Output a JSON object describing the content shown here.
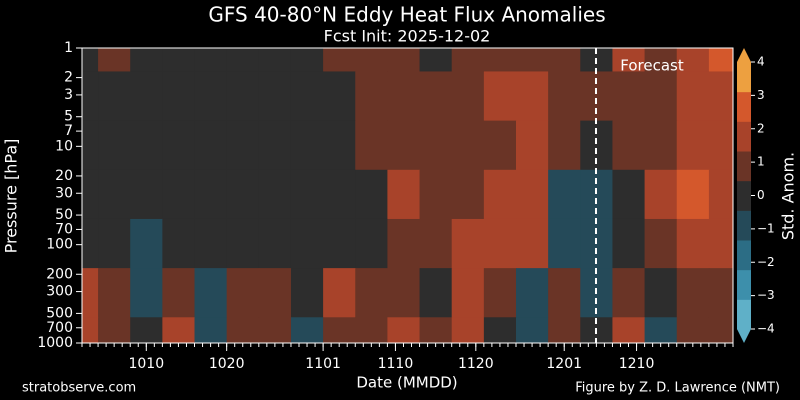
{
  "chart_data": {
    "type": "heatmap",
    "title": "GFS 40-80°N Eddy Heat Flux Anomalies",
    "subtitle": "Fcst Init: 2025-12-02",
    "x_label": "Date (MMDD)",
    "y_label": "Pressure [hPa]",
    "colorbar_label": "Std. Anom.",
    "annotation": "Forecast",
    "footer_left": "stratobserve.com",
    "footer_right": "Figure by Z. D. Lawrence (NMT)",
    "x": [
      "1002",
      "1006",
      "1010",
      "1014",
      "1018",
      "1022",
      "1026",
      "1030",
      "1103",
      "1107",
      "1111",
      "1115",
      "1119",
      "1123",
      "1127",
      "1201",
      "1205",
      "1209",
      "1213",
      "1217",
      "1221"
    ],
    "y": [
      1,
      3,
      10,
      30,
      100,
      300,
      1000
    ],
    "z": [
      [
        0.2,
        0.5,
        0,
        -0.2,
        0,
        0.3,
        0.2,
        0.3,
        0.5,
        0.8,
        0.6,
        0.4,
        1.2,
        1.0,
        0.8,
        1.0,
        0.3,
        1.5,
        1.2,
        1.8,
        2.5
      ],
      [
        0,
        0.3,
        0,
        -0.3,
        -0.2,
        0,
        0.2,
        0.2,
        0.3,
        0.5,
        0.8,
        0.6,
        1.0,
        1.5,
        1.5,
        0.8,
        0.5,
        1.0,
        1.0,
        1.5,
        1.8
      ],
      [
        0,
        0.2,
        -0.2,
        -0.3,
        -0.2,
        -0.1,
        0,
        0.1,
        0.3,
        0.5,
        1.2,
        1.0,
        1.0,
        1.3,
        1.8,
        1.0,
        0.2,
        0.5,
        1.0,
        2.2,
        1.5
      ],
      [
        -0.2,
        0,
        -0.3,
        -0.5,
        -0.3,
        -0.2,
        -0.2,
        0,
        0.2,
        0.3,
        1.5,
        0.8,
        1.2,
        1.5,
        2.0,
        -1.2,
        -1.5,
        -0.5,
        1.5,
        2.5,
        1.8
      ],
      [
        0,
        -0.3,
        -0.8,
        -0.5,
        -0.5,
        -0.2,
        -0.3,
        -0.2,
        0,
        0.3,
        1.0,
        0.5,
        1.5,
        2.0,
        1.5,
        -1.0,
        -1.5,
        -0.5,
        1.0,
        2.0,
        1.5
      ],
      [
        1.5,
        1.0,
        -0.8,
        0.5,
        -1.0,
        0.5,
        0.8,
        0,
        1.5,
        0.5,
        1.2,
        -0.5,
        2.0,
        1.0,
        -0.8,
        0.5,
        -1.5,
        0.5,
        -0.5,
        1.0,
        0.8
      ],
      [
        1.8,
        1.2,
        -0.5,
        1.5,
        -1.5,
        0.8,
        0.5,
        -0.8,
        1.2,
        0.5,
        1.5,
        0.8,
        1.5,
        -0.5,
        -1.5,
        1.0,
        -0.5,
        1.5,
        -0.8,
        1.0,
        1.2
      ]
    ],
    "xlim": [
      "1002",
      "1222"
    ],
    "xticks": [
      "1010",
      "1020",
      "1101",
      "1110",
      "1120",
      "1201",
      "1210"
    ],
    "ylim": [
      1000,
      1
    ],
    "log_scale": true,
    "yticks": [
      1,
      2,
      3,
      5,
      7,
      10,
      20,
      30,
      50,
      70,
      100,
      200,
      300,
      500,
      700,
      1000
    ],
    "clim": [
      -4,
      4
    ],
    "cticks": [
      {
        "value": -4,
        "label": "−4"
      },
      {
        "value": -3,
        "label": "−3"
      },
      {
        "value": -2,
        "label": "−2"
      },
      {
        "value": -1,
        "label": "−1"
      },
      0,
      1,
      2,
      3,
      4
    ],
    "colormap": [
      "#5fb0c8",
      "#3d8fab",
      "#2c6d85",
      "#254a59",
      "#2d2d2d",
      "#6a3426",
      "#a8432a",
      "#d4582c",
      "#eda040"
    ]
  }
}
